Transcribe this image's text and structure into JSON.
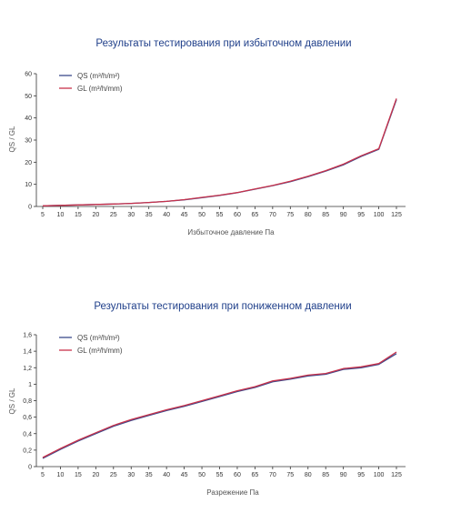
{
  "chart_data": [
    {
      "type": "line",
      "title": "Результаты тестирования при избыточном давлении",
      "xlabel": "Избыточное давление Па",
      "ylabel": "QS / GL",
      "categories": [
        "5",
        "10",
        "15",
        "20",
        "25",
        "30",
        "35",
        "40",
        "45",
        "50",
        "55",
        "60",
        "65",
        "70",
        "75",
        "80",
        "85",
        "90",
        "95",
        "100",
        "125"
      ],
      "yticks": [
        "0",
        "10",
        "20",
        "30",
        "40",
        "50",
        "60"
      ],
      "ylim": [
        0,
        60
      ],
      "series": [
        {
          "name": "QS (m³/h/m²)",
          "color": "#3b4a8c",
          "values": [
            0.3,
            0.5,
            0.7,
            0.9,
            1.1,
            1.4,
            1.8,
            2.3,
            3.0,
            4.0,
            5.0,
            6.2,
            7.8,
            9.4,
            11.2,
            13.5,
            16.0,
            18.8,
            22.6,
            25.8,
            48.3
          ]
        },
        {
          "name": "GL (m³/h/mm)",
          "color": "#c8324b",
          "values": [
            0.3,
            0.5,
            0.7,
            0.9,
            1.1,
            1.4,
            1.8,
            2.3,
            3.1,
            4.1,
            5.1,
            6.3,
            7.9,
            9.5,
            11.4,
            13.7,
            16.2,
            19.1,
            22.9,
            26.1,
            48.8
          ]
        }
      ],
      "legend": "top-left",
      "grid": false
    },
    {
      "type": "line",
      "title": "Результаты тестирования при пониженном давлении",
      "xlabel": "Разрежение Па",
      "ylabel": "QS / GL",
      "categories": [
        "5",
        "10",
        "15",
        "20",
        "25",
        "30",
        "35",
        "40",
        "45",
        "50",
        "55",
        "60",
        "65",
        "70",
        "75",
        "80",
        "85",
        "90",
        "95",
        "100",
        "125"
      ],
      "yticks": [
        "0",
        "0,2",
        "0,4",
        "0,6",
        "0,8",
        "1",
        "1,2",
        "1,4",
        "1,6"
      ],
      "ylim": [
        0,
        1.6
      ],
      "series": [
        {
          "name": "QS (m³/h/m²)",
          "color": "#3b4a8c",
          "values": [
            0.1,
            0.21,
            0.31,
            0.4,
            0.49,
            0.56,
            0.62,
            0.68,
            0.73,
            0.79,
            0.85,
            0.91,
            0.96,
            1.03,
            1.06,
            1.1,
            1.12,
            1.18,
            1.2,
            1.24,
            1.37
          ]
        },
        {
          "name": "GL (m³/h/mm)",
          "color": "#c8324b",
          "values": [
            0.11,
            0.22,
            0.32,
            0.41,
            0.5,
            0.57,
            0.63,
            0.69,
            0.74,
            0.8,
            0.86,
            0.92,
            0.97,
            1.04,
            1.07,
            1.11,
            1.13,
            1.19,
            1.21,
            1.25,
            1.39
          ]
        }
      ],
      "legend": "top-left",
      "grid": false
    }
  ]
}
